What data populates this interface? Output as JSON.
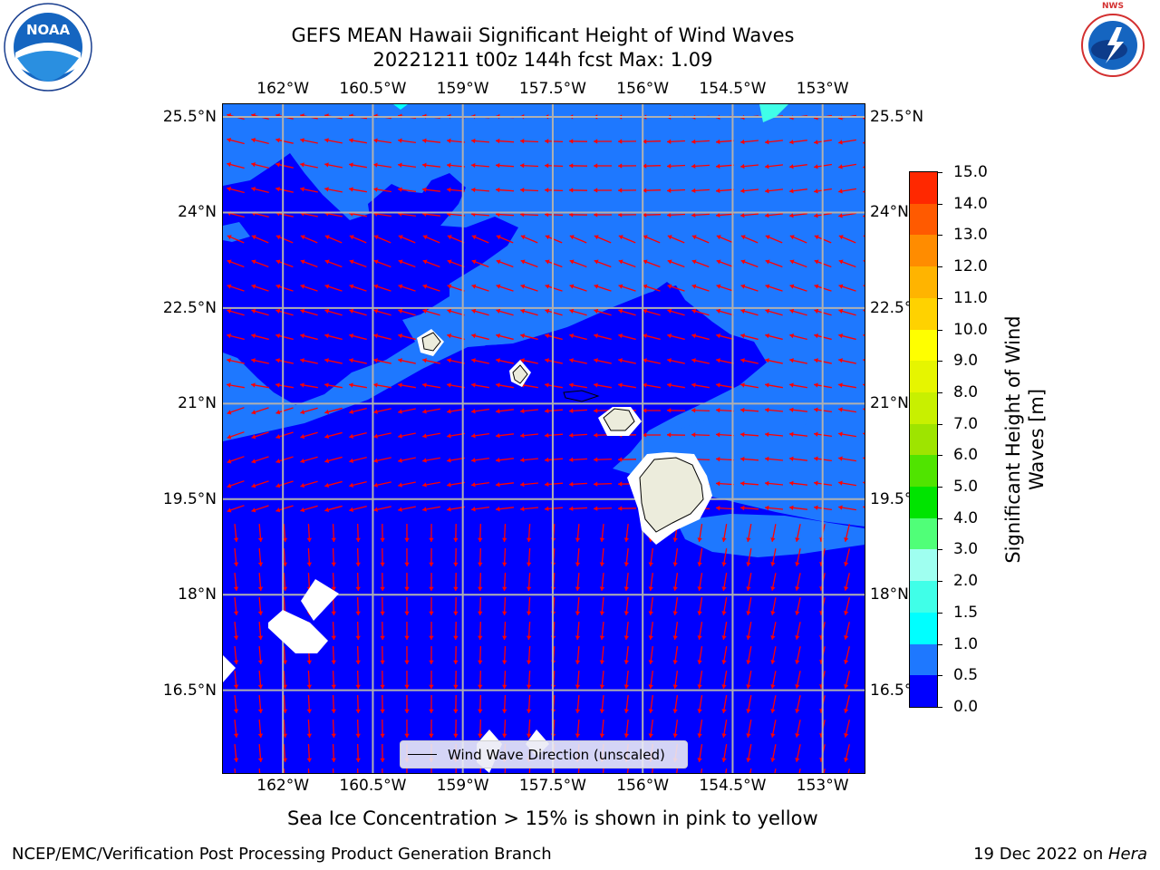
{
  "title": {
    "line1": "GEFS MEAN Hawaii Significant Height of Wind Waves",
    "line2": "20221211 t00z 144h fcst   Max: 1.09"
  },
  "axes": {
    "lon_labels": [
      "162°W",
      "160.5°W",
      "159°W",
      "157.5°W",
      "156°W",
      "154.5°W",
      "153°W"
    ],
    "lat_labels": [
      "25.5°N",
      "24°N",
      "22.5°N",
      "21°N",
      "19.5°N",
      "18°N",
      "16.5°N"
    ]
  },
  "map_data": {
    "extent": {
      "lon": [
        -163,
        -152.3
      ],
      "lat": [
        15.2,
        25.7
      ]
    },
    "grid_lons": [
      -162,
      -160.5,
      -159,
      -157.5,
      -156,
      -154.5,
      -153
    ],
    "grid_lats": [
      25.5,
      24,
      22.5,
      21,
      19.5,
      18,
      16.5
    ],
    "fill_levels": [
      0.0,
      0.5,
      1.0
    ],
    "fill_colors": [
      "#0000ff",
      "#1e78ff"
    ]
  },
  "legend": {
    "label": "Wind Wave Direction (unscaled)"
  },
  "colorbar": {
    "title_line1": "Significant Height of Wind",
    "title_line2": "Waves [m]",
    "ticks": [
      "0.0",
      "0.5",
      "1.0",
      "1.5",
      "2.0",
      "3.0",
      "4.0",
      "5.0",
      "6.0",
      "7.0",
      "8.0",
      "9.0",
      "10.0",
      "11.0",
      "12.0",
      "13.0",
      "14.0",
      "15.0"
    ],
    "colors": [
      "#0000ff",
      "#1e78ff",
      "#00ffff",
      "#40ffe8",
      "#9ffff0",
      "#50ff78",
      "#00e400",
      "#50e400",
      "#9ee400",
      "#c8f000",
      "#e6f500",
      "#ffff00",
      "#ffd200",
      "#ffb400",
      "#ff8c00",
      "#ff5a00",
      "#ff2800"
    ]
  },
  "note": "Sea Ice Concentration > 15% is shown in pink to yellow",
  "footer": {
    "left": "NCEP/EMC/Verification Post Processing Product Generation Branch",
    "right_date": "19 Dec 2022 on ",
    "right_host": "Hera"
  },
  "logos": {
    "noaa_text": "NOAA",
    "noaa_ring": "NATIONAL OCEANIC AND ATMOSPHERIC ADMINISTRATION",
    "nws_ring": "NATIONAL WEATHER SERVICE"
  }
}
